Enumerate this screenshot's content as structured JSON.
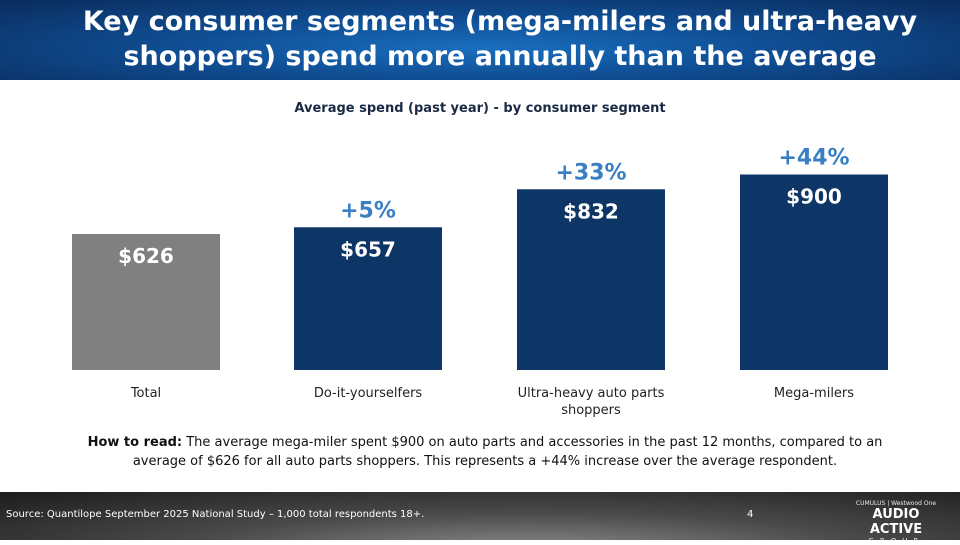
{
  "header": {
    "title": "Key consumer segments (mega-milers and ultra-heavy shoppers) spend more annually than the average"
  },
  "chart_data": {
    "type": "bar",
    "title": "Average spend (past year) - by consumer segment",
    "categories": [
      "Total",
      "Do-it-yourselfers",
      "Ultra-heavy auto parts shoppers",
      "Mega-milers"
    ],
    "values": [
      626,
      657,
      832,
      900
    ],
    "value_labels": [
      "$626",
      "$657",
      "$832",
      "$900"
    ],
    "increase_labels": [
      "",
      "+5%",
      "+33%",
      "+44%"
    ],
    "ylim": [
      0,
      900
    ],
    "grid": false,
    "colors": {
      "total": "#808080",
      "segment": "#0d3566",
      "increase": "#3a7fc4"
    }
  },
  "how_to_read": {
    "label": "How to read:",
    "text": " The average mega-miler spent $900 on auto parts and accessories in the past 12 months, compared to an average of $626 for all auto parts shoppers. This represents a +44% increase over the average respondent."
  },
  "footer": {
    "source": "Source: Quantilope September 2025 National Study – 1,000 total respondents 18+.",
    "page": "4",
    "logo_top": "CUMULUS | Westwood One",
    "logo_main": "AUDIO ACTIVE",
    "logo_sub": "GROUP"
  }
}
